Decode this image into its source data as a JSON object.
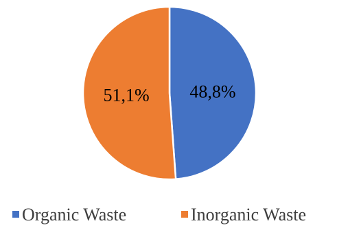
{
  "chart_data": {
    "type": "pie",
    "categories": [
      "Organic Waste",
      "Inorganic Waste"
    ],
    "values": [
      48.8,
      51.1
    ],
    "data_labels": [
      "48,8%",
      "51,1%"
    ],
    "colors": [
      "#4472C4",
      "#ED7D31"
    ],
    "start_angle_deg": 90,
    "direction": "clockwise",
    "legend_position": "bottom"
  }
}
